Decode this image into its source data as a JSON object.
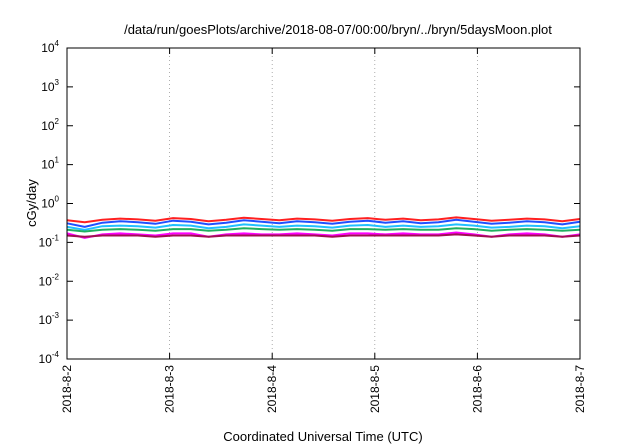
{
  "chart_data": {
    "type": "line",
    "title": "/data/run/goesPlots/archive/2018-08-07/00:00/bryn/../bryn/5daysMoon.plot",
    "xlabel": "Coordinated Universal Time (UTC)",
    "ylabel": "cGy/day",
    "yscale": "log",
    "ylim": [
      0.0001,
      10000
    ],
    "y_ticks": [
      {
        "base": "10",
        "exp": "4"
      },
      {
        "base": "10",
        "exp": "3"
      },
      {
        "base": "10",
        "exp": "2"
      },
      {
        "base": "10",
        "exp": "1"
      },
      {
        "base": "10",
        "exp": "0"
      },
      {
        "base": "10",
        "exp": "-1"
      },
      {
        "base": "10",
        "exp": "-2"
      },
      {
        "base": "10",
        "exp": "-3"
      },
      {
        "base": "10",
        "exp": "-4"
      }
    ],
    "x_ticks": [
      "2018-8-2",
      "2018-8-3",
      "2018-8-4",
      "2018-8-5",
      "2018-8-6",
      "2018-8-7"
    ],
    "xlim": [
      "2018-08-02",
      "2018-08-07"
    ],
    "grid": "vertical-dotted-at-x-ticks",
    "legend": "none",
    "series": [
      {
        "color": "#ff2020",
        "values": [
          0.37,
          0.33,
          0.38,
          0.41,
          0.39,
          0.36,
          0.42,
          0.4,
          0.35,
          0.38,
          0.43,
          0.4,
          0.37,
          0.41,
          0.39,
          0.36,
          0.4,
          0.42,
          0.38,
          0.41,
          0.37,
          0.39,
          0.44,
          0.4,
          0.36,
          0.38,
          0.41,
          0.39,
          0.35,
          0.4
        ]
      },
      {
        "color": "#2050ff",
        "values": [
          0.31,
          0.25,
          0.32,
          0.35,
          0.33,
          0.3,
          0.36,
          0.34,
          0.29,
          0.32,
          0.37,
          0.34,
          0.31,
          0.35,
          0.33,
          0.3,
          0.34,
          0.36,
          0.32,
          0.35,
          0.31,
          0.33,
          0.38,
          0.34,
          0.3,
          0.32,
          0.35,
          0.33,
          0.29,
          0.34
        ]
      },
      {
        "color": "#20c0ff",
        "values": [
          0.25,
          0.21,
          0.26,
          0.27,
          0.26,
          0.24,
          0.28,
          0.27,
          0.23,
          0.25,
          0.29,
          0.27,
          0.25,
          0.27,
          0.26,
          0.24,
          0.27,
          0.28,
          0.25,
          0.27,
          0.25,
          0.26,
          0.29,
          0.27,
          0.24,
          0.25,
          0.27,
          0.26,
          0.23,
          0.26
        ]
      },
      {
        "color": "#20b060",
        "values": [
          0.21,
          0.19,
          0.21,
          0.22,
          0.21,
          0.2,
          0.22,
          0.22,
          0.2,
          0.21,
          0.23,
          0.22,
          0.21,
          0.22,
          0.21,
          0.2,
          0.22,
          0.22,
          0.21,
          0.22,
          0.21,
          0.21,
          0.23,
          0.22,
          0.2,
          0.21,
          0.22,
          0.21,
          0.2,
          0.21
        ]
      },
      {
        "color": "#ff00ff",
        "values": [
          0.17,
          0.13,
          0.16,
          0.17,
          0.16,
          0.15,
          0.17,
          0.17,
          0.14,
          0.16,
          0.17,
          0.16,
          0.16,
          0.17,
          0.16,
          0.15,
          0.17,
          0.17,
          0.16,
          0.17,
          0.16,
          0.16,
          0.18,
          0.16,
          0.14,
          0.16,
          0.17,
          0.16,
          0.14,
          0.16
        ]
      },
      {
        "color": "#a01050",
        "values": [
          0.15,
          0.14,
          0.15,
          0.15,
          0.15,
          0.14,
          0.15,
          0.15,
          0.14,
          0.15,
          0.15,
          0.15,
          0.15,
          0.15,
          0.15,
          0.14,
          0.15,
          0.15,
          0.15,
          0.15,
          0.15,
          0.15,
          0.16,
          0.15,
          0.14,
          0.15,
          0.15,
          0.15,
          0.14,
          0.15
        ]
      }
    ]
  }
}
